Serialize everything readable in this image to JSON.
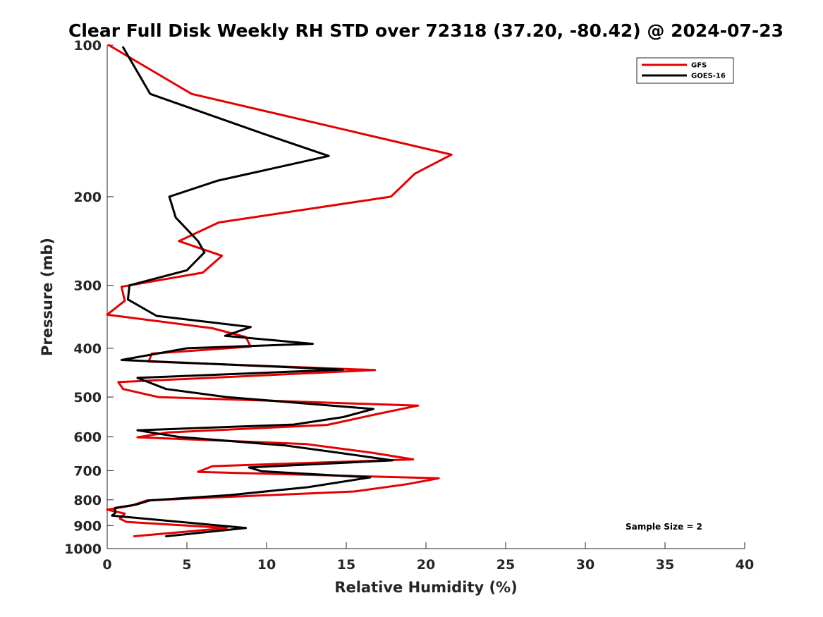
{
  "chart_data": {
    "type": "line",
    "title": "Clear Full Disk Weekly RH STD over 72318 (37.20, -80.42) @ 2024-07-23",
    "xlabel": "Relative Humidity (%)",
    "ylabel": "Pressure (mb)",
    "xlim": [
      0,
      40
    ],
    "ylim": [
      100,
      1000
    ],
    "y_scale": "log",
    "y_reversed": true,
    "grid": false,
    "legend_position": "top-right",
    "x_ticks": [
      0,
      5,
      10,
      15,
      20,
      25,
      30,
      35,
      40
    ],
    "y_ticks": [
      100,
      200,
      300,
      400,
      500,
      600,
      700,
      800,
      900,
      1000
    ],
    "annotation": "Sample Size = 2",
    "series": [
      {
        "name": "GFS",
        "color": "#e60000",
        "points": [
          [
            0.1,
            100
          ],
          [
            5.3,
            125
          ],
          [
            21.6,
            165
          ],
          [
            19.3,
            180
          ],
          [
            17.8,
            200
          ],
          [
            7.0,
            225
          ],
          [
            4.5,
            245
          ],
          [
            7.2,
            262
          ],
          [
            6.0,
            283
          ],
          [
            0.9,
            302
          ],
          [
            1.1,
            322
          ],
          [
            0.0,
            343
          ],
          [
            6.6,
            365
          ],
          [
            8.7,
            380
          ],
          [
            9.0,
            397
          ],
          [
            2.8,
            410
          ],
          [
            2.6,
            425
          ],
          [
            16.8,
            442
          ],
          [
            0.7,
            467
          ],
          [
            1.0,
            482
          ],
          [
            3.2,
            500
          ],
          [
            19.5,
            520
          ],
          [
            17.0,
            540
          ],
          [
            13.8,
            568
          ],
          [
            3.8,
            588
          ],
          [
            1.9,
            601
          ],
          [
            12.5,
            620
          ],
          [
            16.6,
            645
          ],
          [
            19.2,
            665
          ],
          [
            6.6,
            686
          ],
          [
            5.7,
            704
          ],
          [
            20.8,
            725
          ],
          [
            18.8,
            745
          ],
          [
            15.5,
            770
          ],
          [
            2.5,
            802
          ],
          [
            1.5,
            822
          ],
          [
            0.0,
            837
          ],
          [
            1.1,
            852
          ],
          [
            0.8,
            872
          ],
          [
            1.2,
            885
          ],
          [
            7.5,
            910
          ],
          [
            1.7,
            945
          ]
        ]
      },
      {
        "name": "GOES-16",
        "color": "#000000",
        "points": [
          [
            1.0,
            101
          ],
          [
            2.7,
            125
          ],
          [
            9.8,
            150
          ],
          [
            13.9,
            166
          ],
          [
            6.9,
            186
          ],
          [
            3.9,
            200
          ],
          [
            4.3,
            220
          ],
          [
            5.7,
            245
          ],
          [
            6.1,
            258
          ],
          [
            5.0,
            280
          ],
          [
            1.4,
            300
          ],
          [
            1.3,
            320
          ],
          [
            3.1,
            345
          ],
          [
            9.0,
            363
          ],
          [
            7.4,
            378
          ],
          [
            12.9,
            392
          ],
          [
            5.0,
            400
          ],
          [
            0.9,
            422
          ],
          [
            14.8,
            441
          ],
          [
            1.9,
            458
          ],
          [
            3.7,
            482
          ],
          [
            7.5,
            500
          ],
          [
            16.7,
            528
          ],
          [
            14.8,
            548
          ],
          [
            11.7,
            567
          ],
          [
            1.9,
            582
          ],
          [
            4.5,
            600
          ],
          [
            11.2,
            624
          ],
          [
            14.5,
            645
          ],
          [
            17.9,
            668
          ],
          [
            8.9,
            690
          ],
          [
            9.7,
            702
          ],
          [
            16.5,
            722
          ],
          [
            12.6,
            755
          ],
          [
            7.7,
            783
          ],
          [
            2.7,
            802
          ],
          [
            1.8,
            818
          ],
          [
            0.5,
            830
          ],
          [
            0.5,
            850
          ],
          [
            0.3,
            860
          ],
          [
            8.7,
            910
          ],
          [
            3.7,
            945
          ]
        ]
      }
    ]
  }
}
